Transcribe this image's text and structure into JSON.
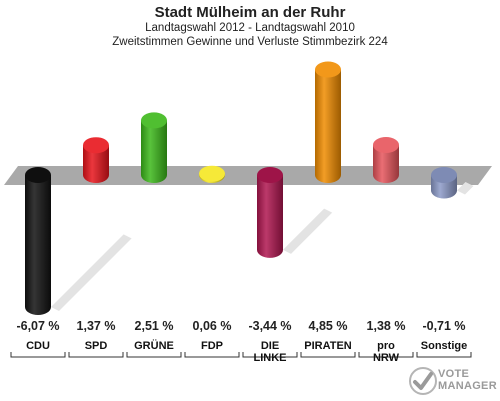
{
  "header": {
    "title": "Stadt Mülheim an der Ruhr",
    "subtitle1": "Landtagswahl 2012 - Landtagswahl 2010",
    "subtitle2": "Zweitstimmen Gewinne und Verluste Stimmbezirk 224"
  },
  "chart_data": {
    "type": "bar",
    "title": "Stadt Mülheim an der Ruhr",
    "categories": [
      "CDU",
      "SPD",
      "GRÜNE",
      "FDP",
      "DIE LINKE",
      "PIRATEN",
      "pro NRW",
      "Sonstige"
    ],
    "category_lines": [
      [
        "CDU"
      ],
      [
        "SPD"
      ],
      [
        "GRÜNE"
      ],
      [
        "FDP"
      ],
      [
        "DIE",
        "LINKE"
      ],
      [
        "PIRATEN"
      ],
      [
        "pro",
        "NRW"
      ],
      [
        "Sonstige"
      ]
    ],
    "values": [
      -6.07,
      1.37,
      2.51,
      0.06,
      -3.44,
      4.85,
      1.38,
      -0.71
    ],
    "value_labels": [
      "-6,07 %",
      "1,37 %",
      "2,51 %",
      "0,06 %",
      "-3,44 %",
      "4,85 %",
      "1,38 %",
      "-0,71 %"
    ],
    "colors": [
      "#111111",
      "#e8141b",
      "#3cb81a",
      "#f5e622",
      "#b01650",
      "#f08c00",
      "#e6545b",
      "#8c9ac8"
    ],
    "ylim": [
      -6.5,
      5.2
    ],
    "grid": false,
    "legend": "none"
  },
  "watermark": {
    "line1": "VOTE",
    "line2": "MANAGER"
  }
}
